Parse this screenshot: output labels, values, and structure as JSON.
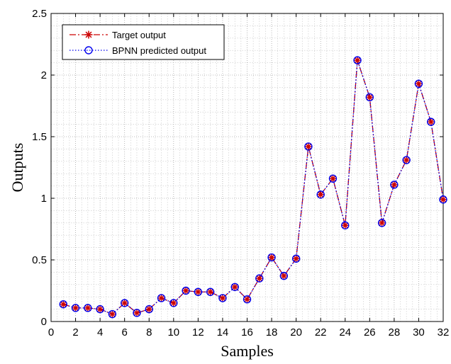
{
  "chart_data": {
    "type": "line",
    "title": "",
    "xlabel": "Samples",
    "ylabel": "Outputs",
    "xlim": [
      0,
      32
    ],
    "ylim": [
      0,
      2.5
    ],
    "xticks": [
      "0",
      "2",
      "4",
      "6",
      "8",
      "10",
      "12",
      "14",
      "16",
      "18",
      "20",
      "22",
      "24",
      "26",
      "28",
      "30",
      "32"
    ],
    "yticks": [
      "0",
      "0.5",
      "1",
      "1.5",
      "2",
      "2.5"
    ],
    "grid": true,
    "minor_grid": true,
    "legend_position": "top-left",
    "x": [
      1,
      2,
      3,
      4,
      5,
      6,
      7,
      8,
      9,
      10,
      11,
      12,
      13,
      14,
      15,
      16,
      17,
      18,
      19,
      20,
      21,
      22,
      23,
      24,
      25,
      26,
      27,
      28,
      29,
      30,
      31,
      32
    ],
    "series": [
      {
        "name": "Target output",
        "color": "#cc0000",
        "line_style": "dash-dot",
        "marker": "asterisk",
        "values": [
          0.14,
          0.11,
          0.11,
          0.1,
          0.06,
          0.15,
          0.07,
          0.1,
          0.19,
          0.15,
          0.25,
          0.24,
          0.24,
          0.19,
          0.28,
          0.18,
          0.35,
          0.52,
          0.37,
          0.51,
          1.42,
          1.03,
          1.16,
          0.78,
          2.12,
          1.82,
          0.8,
          1.11,
          1.31,
          1.93,
          1.62,
          0.99
        ]
      },
      {
        "name": "BPNN predicted output",
        "color": "#0000ee",
        "line_style": "dotted",
        "marker": "circle",
        "values": [
          0.14,
          0.11,
          0.11,
          0.1,
          0.06,
          0.15,
          0.07,
          0.1,
          0.19,
          0.15,
          0.25,
          0.24,
          0.24,
          0.19,
          0.28,
          0.18,
          0.35,
          0.52,
          0.37,
          0.51,
          1.42,
          1.03,
          1.16,
          0.78,
          2.12,
          1.82,
          0.8,
          1.11,
          1.31,
          1.93,
          1.62,
          0.99
        ]
      }
    ]
  }
}
